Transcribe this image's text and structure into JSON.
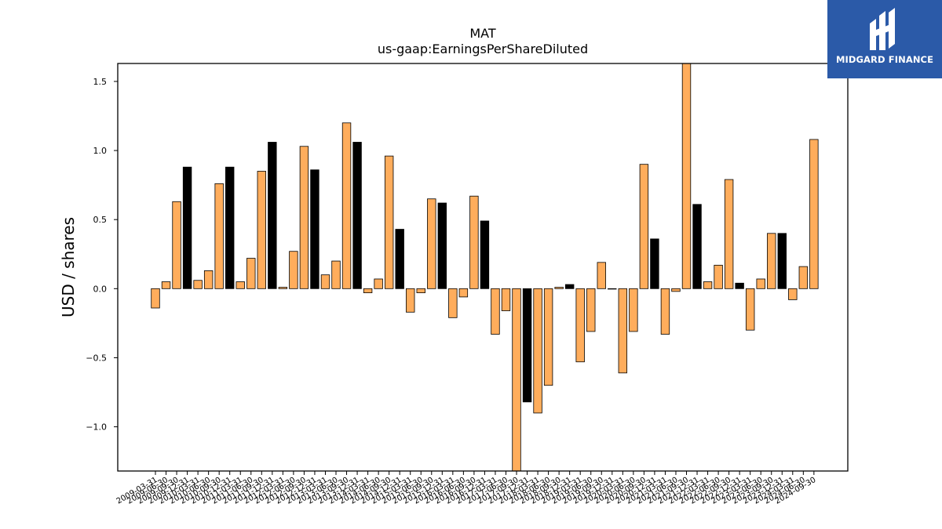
{
  "logo": {
    "text": "MIDGARD FINANCE",
    "background": "#2b5aa8"
  },
  "colors": {
    "bar_default": "#ffad5c",
    "bar_highlight": "#000000",
    "edge": "#000000"
  },
  "chart_data": {
    "type": "bar",
    "title": "MAT",
    "subtitle": "us-gaap:EarningsPerShareDiluted",
    "xlabel": "",
    "ylabel": "USD / shares",
    "ylim": [
      -1.32,
      1.63
    ],
    "yticks": [
      -1.0,
      -0.5,
      0.0,
      0.5,
      1.0,
      1.5
    ],
    "ytick_labels": [
      "−1.0",
      "−0.5",
      "0.0",
      "0.5",
      "1.0",
      "1.5"
    ],
    "grid": false,
    "legend": "none",
    "categories": [
      "2009-03-31",
      "2009-06-30",
      "2009-09-30",
      "2009-12-31",
      "2010-03-31",
      "2010-06-30",
      "2010-09-30",
      "2010-12-31",
      "2011-03-31",
      "2011-06-30",
      "2011-09-30",
      "2011-12-31",
      "2012-03-31",
      "2012-06-30",
      "2012-09-30",
      "2012-12-31",
      "2013-03-31",
      "2013-06-30",
      "2013-09-30",
      "2013-12-31",
      "2014-03-31",
      "2014-06-30",
      "2014-09-30",
      "2014-12-31",
      "2015-03-31",
      "2015-06-30",
      "2015-09-30",
      "2015-12-31",
      "2016-03-31",
      "2016-06-30",
      "2016-09-30",
      "2016-12-31",
      "2017-03-31",
      "2017-06-30",
      "2017-09-30",
      "2017-12-31",
      "2018-03-31",
      "2018-06-30",
      "2018-09-30",
      "2018-12-31",
      "2019-03-31",
      "2019-06-30",
      "2019-09-30",
      "2019-12-31",
      "2020-03-31",
      "2020-06-30",
      "2020-09-30",
      "2020-12-31",
      "2021-03-31",
      "2021-06-30",
      "2021-09-30",
      "2021-12-31",
      "2022-03-31",
      "2022-06-30",
      "2022-09-30",
      "2022-12-31",
      "2023-03-31",
      "2023-06-30",
      "2023-09-30",
      "2023-12-31",
      "2024-03-31",
      "2024-06-30",
      "2024-09-30"
    ],
    "values": [
      -0.14,
      0.05,
      0.63,
      0.88,
      0.06,
      0.13,
      0.76,
      0.88,
      0.05,
      0.22,
      0.85,
      1.06,
      0.01,
      0.27,
      1.03,
      0.86,
      0.1,
      0.2,
      1.2,
      1.06,
      -0.03,
      0.07,
      0.96,
      0.43,
      -0.17,
      -0.03,
      0.65,
      0.62,
      -0.21,
      -0.06,
      0.67,
      0.49,
      -0.33,
      -0.16,
      -1.35,
      -0.82,
      -0.9,
      -0.7,
      0.01,
      0.03,
      -0.53,
      -0.31,
      0.19,
      0.0,
      -0.61,
      -0.31,
      0.9,
      0.36,
      -0.33,
      -0.02,
      1.7,
      0.61,
      0.05,
      0.17,
      0.79,
      0.04,
      -0.3,
      0.07,
      0.4,
      0.4,
      -0.08,
      0.16,
      1.08
    ],
    "highlight_indices": [
      3,
      7,
      11,
      15,
      19,
      23,
      27,
      31,
      35,
      39,
      47,
      51,
      55,
      59
    ]
  }
}
